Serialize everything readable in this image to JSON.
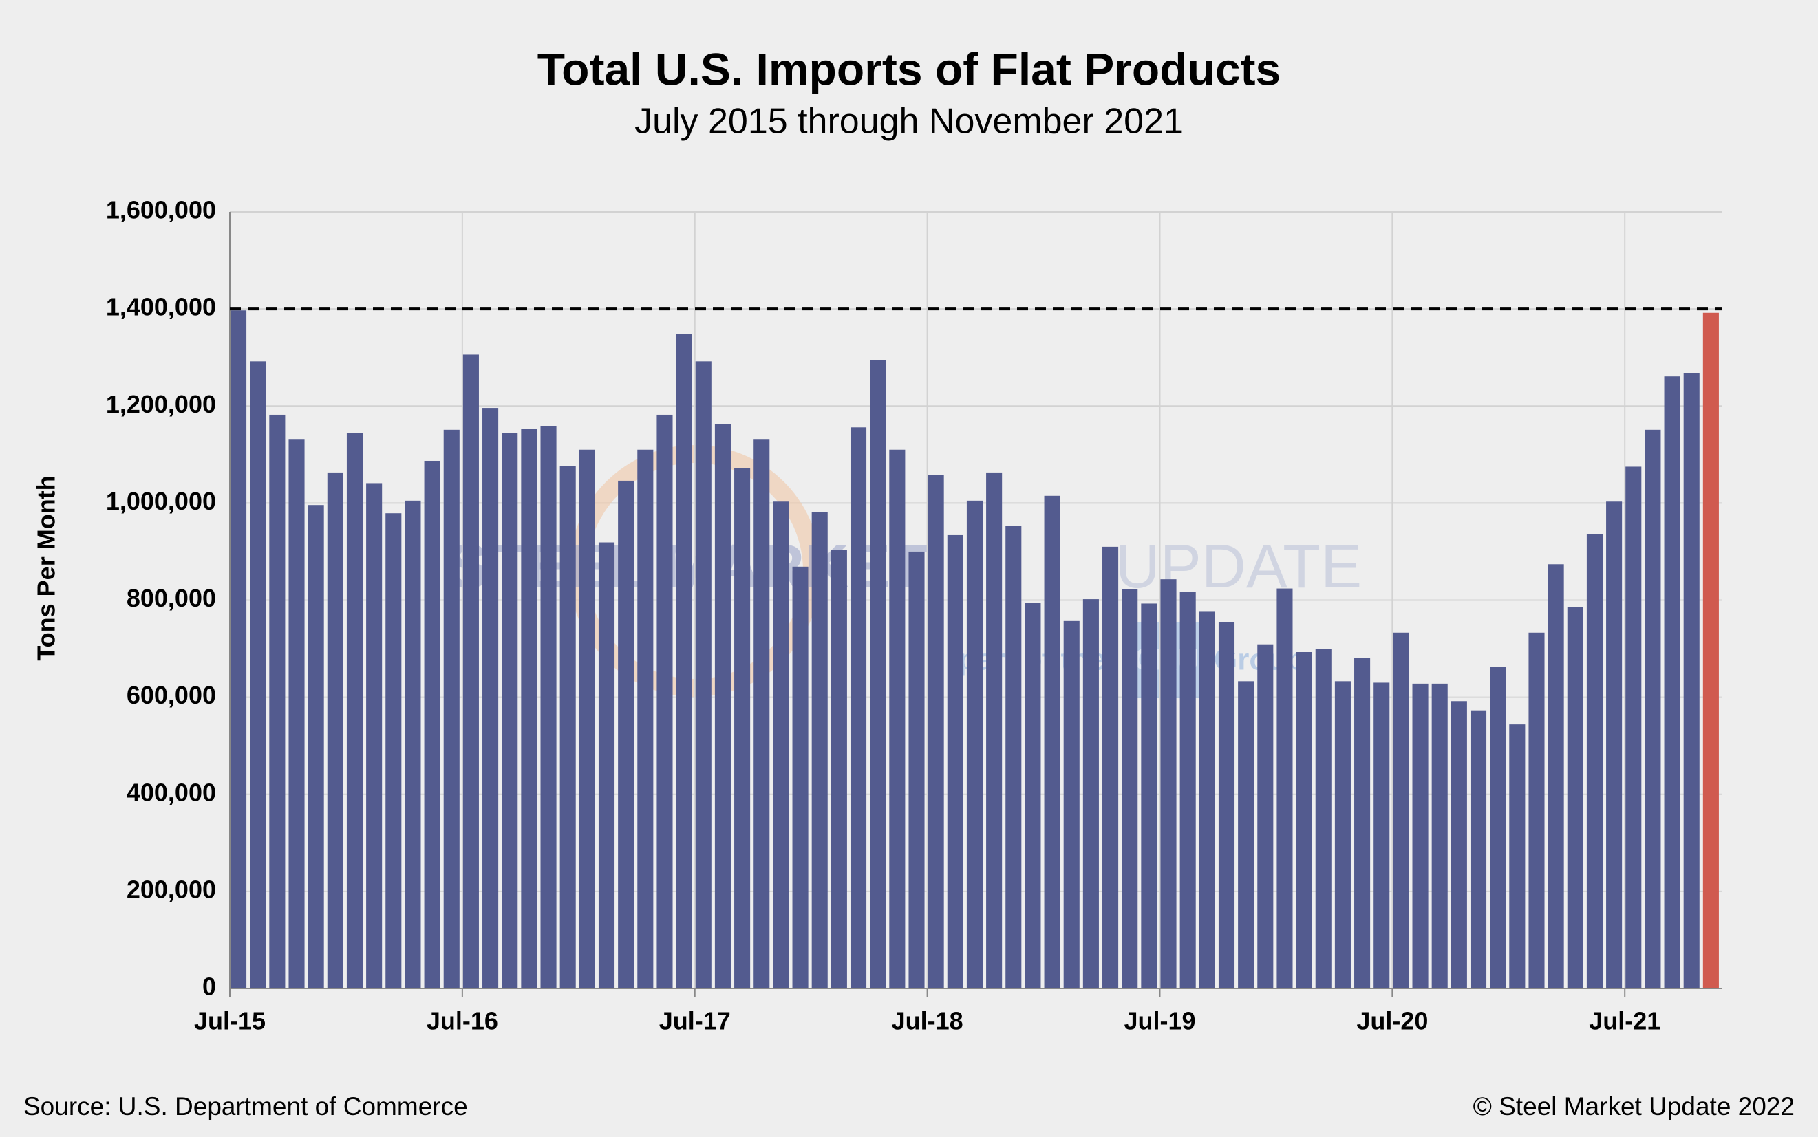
{
  "chart_data": {
    "type": "bar",
    "title": "Total U.S. Imports of Flat Products",
    "subtitle": "July 2015 through November 2021",
    "y_label": "Tons Per Month",
    "source": "Source: U.S. Department of Commerce",
    "copyright": "© Steel Market Update 2022",
    "watermark": [
      "STEEL MARKET",
      "UPDATE",
      "part of the",
      "CRU",
      "Group"
    ],
    "categories": [
      "Jul-15",
      null,
      null,
      null,
      null,
      null,
      null,
      null,
      null,
      null,
      null,
      null,
      "Jul-16",
      null,
      null,
      null,
      null,
      null,
      null,
      null,
      null,
      null,
      null,
      null,
      "Jul-17",
      null,
      null,
      null,
      null,
      null,
      null,
      null,
      null,
      null,
      null,
      null,
      "Jul-18",
      null,
      null,
      null,
      null,
      null,
      null,
      null,
      null,
      null,
      null,
      null,
      "Jul-19",
      null,
      null,
      null,
      null,
      null,
      null,
      null,
      null,
      null,
      null,
      null,
      "Jul-20",
      null,
      null,
      null,
      null,
      null,
      null,
      null,
      null,
      null,
      null,
      null,
      "Jul-21",
      null,
      null,
      null,
      null
    ],
    "values": [
      1397000,
      1292000,
      1182000,
      1132000,
      996000,
      1063000,
      1144000,
      1041000,
      979000,
      1005000,
      1087000,
      1151000,
      1306000,
      1196000,
      1144000,
      1153000,
      1158000,
      1077000,
      1110000,
      919000,
      1046000,
      1110000,
      1182000,
      1349000,
      1292000,
      1163000,
      1072000,
      1132000,
      1003000,
      869000,
      981000,
      903000,
      1156000,
      1294000,
      1110000,
      900000,
      1058000,
      934000,
      1005000,
      1063000,
      953000,
      795000,
      1015000,
      757000,
      802000,
      910000,
      822000,
      793000,
      843000,
      817000,
      776000,
      755000,
      633000,
      709000,
      824000,
      693000,
      700000,
      633000,
      681000,
      630000,
      733000,
      628000,
      628000,
      592000,
      573000,
      662000,
      544000,
      733000,
      874000,
      786000,
      936000,
      1003000,
      1075000,
      1151000,
      1261000,
      1268000,
      1392000
    ],
    "color": "#535b8f",
    "last_bar_color": "#d05a4f",
    "reference_line": 1400000,
    "ylim": [
      0,
      1600000
    ],
    "yticks": [
      0,
      {
        "value": 200000,
        "label": "200,000"
      },
      {
        "value": 400000,
        "label": "400,000"
      },
      {
        "value": 600000,
        "label": "600,000"
      },
      {
        "value": 800000,
        "label": "800,000"
      },
      {
        "value": 1000000,
        "label": "1,000,000"
      },
      {
        "value": 1200000,
        "label": "1,200,000"
      },
      {
        "value": 1400000,
        "label": "1,400,000"
      },
      {
        "value": 1600000,
        "label": "1,600,000"
      }
    ],
    "grid": true
  }
}
